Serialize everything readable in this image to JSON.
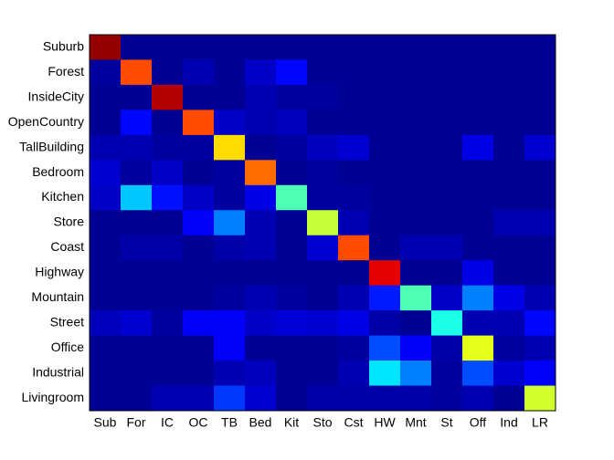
{
  "chart_data": {
    "type": "heatmap",
    "colormap": "jet",
    "clim": [
      0,
      1
    ],
    "x_categories": [
      "Sub",
      "For",
      "IC",
      "OC",
      "TB",
      "Bed",
      "Kit",
      "Sto",
      "Cst",
      "HW",
      "Mnt",
      "St",
      "Off",
      "Ind",
      "LR"
    ],
    "y_categories": [
      "Suburb",
      "Forest",
      "InsideCity",
      "OpenCountry",
      "TallBuilding",
      "Bedroom",
      "Kitchen",
      "Store",
      "Coast",
      "Highway",
      "Mountain",
      "Street",
      "Office",
      "Industrial",
      "Livingroom"
    ],
    "values": [
      [
        0.98,
        0.02,
        0.02,
        0.02,
        0.02,
        0.02,
        0.02,
        0.02,
        0.02,
        0.02,
        0.02,
        0.02,
        0.02,
        0.02,
        0.02
      ],
      [
        0.03,
        0.8,
        0.02,
        0.05,
        0.02,
        0.07,
        0.13,
        0.02,
        0.02,
        0.02,
        0.02,
        0.02,
        0.02,
        0.02,
        0.02
      ],
      [
        0.02,
        0.02,
        0.95,
        0.02,
        0.02,
        0.05,
        0.03,
        0.03,
        0.02,
        0.02,
        0.02,
        0.02,
        0.02,
        0.02,
        0.02
      ],
      [
        0.02,
        0.13,
        0.02,
        0.8,
        0.07,
        0.05,
        0.06,
        0.02,
        0.02,
        0.02,
        0.02,
        0.02,
        0.02,
        0.02,
        0.02
      ],
      [
        0.05,
        0.05,
        0.03,
        0.03,
        0.66,
        0.02,
        0.03,
        0.06,
        0.08,
        0.02,
        0.02,
        0.02,
        0.1,
        0.02,
        0.08
      ],
      [
        0.08,
        0.03,
        0.07,
        0.02,
        0.03,
        0.77,
        0.02,
        0.03,
        0.02,
        0.02,
        0.02,
        0.02,
        0.02,
        0.02,
        0.02
      ],
      [
        0.07,
        0.32,
        0.14,
        0.07,
        0.03,
        0.1,
        0.45,
        0.03,
        0.03,
        0.02,
        0.02,
        0.02,
        0.02,
        0.02,
        0.02
      ],
      [
        0.02,
        0.02,
        0.02,
        0.12,
        0.25,
        0.05,
        0.02,
        0.57,
        0.05,
        0.02,
        0.02,
        0.02,
        0.02,
        0.05,
        0.05
      ],
      [
        0.02,
        0.04,
        0.04,
        0.02,
        0.04,
        0.05,
        0.02,
        0.08,
        0.8,
        0.02,
        0.05,
        0.05,
        0.02,
        0.02,
        0.02
      ],
      [
        0.02,
        0.02,
        0.02,
        0.02,
        0.02,
        0.02,
        0.02,
        0.02,
        0.02,
        0.9,
        0.02,
        0.02,
        0.1,
        0.02,
        0.02
      ],
      [
        0.02,
        0.02,
        0.02,
        0.02,
        0.03,
        0.05,
        0.03,
        0.02,
        0.05,
        0.15,
        0.45,
        0.07,
        0.25,
        0.1,
        0.05
      ],
      [
        0.06,
        0.08,
        0.03,
        0.12,
        0.12,
        0.07,
        0.09,
        0.08,
        0.1,
        0.04,
        0.02,
        0.4,
        0.05,
        0.05,
        0.13
      ],
      [
        0.02,
        0.02,
        0.02,
        0.02,
        0.12,
        0.02,
        0.02,
        0.02,
        0.03,
        0.2,
        0.12,
        0.04,
        0.6,
        0.03,
        0.05
      ],
      [
        0.02,
        0.02,
        0.02,
        0.02,
        0.05,
        0.06,
        0.02,
        0.02,
        0.05,
        0.35,
        0.25,
        0.03,
        0.2,
        0.08,
        0.12
      ],
      [
        0.02,
        0.02,
        0.05,
        0.05,
        0.18,
        0.08,
        0.02,
        0.04,
        0.04,
        0.04,
        0.04,
        0.03,
        0.05,
        0.02,
        0.58
      ]
    ]
  }
}
